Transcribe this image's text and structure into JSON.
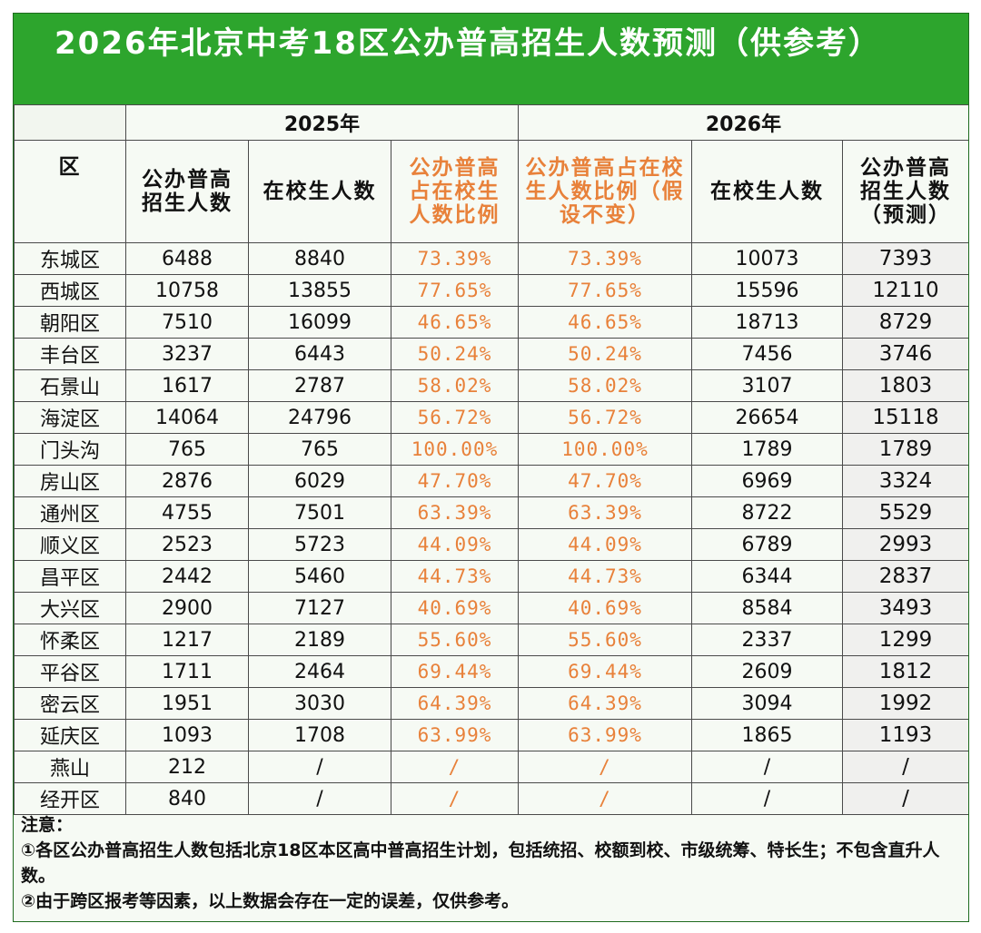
{
  "title": "2026年北京中考18区公办普高招生人数预测（供参考）",
  "header": {
    "district_col": "区",
    "group_2025": "2025年",
    "group_2026": "2026年",
    "col_enroll_2025": "公办普高招生人数",
    "col_students_2025": "在校生人数",
    "col_ratio_2025": "公办普高占在校生人数比例",
    "col_ratio_2026": "公办普高占在校生人数比例（假设不变）",
    "col_students_2026": "在校生人数",
    "col_pred_2026": "公办普高招生人数（预测）"
  },
  "rows": [
    {
      "district": "东城区",
      "enroll_2025": "6488",
      "students_2025": "8840",
      "ratio_2025": "73.39%",
      "ratio_2026": "73.39%",
      "students_2026": "10073",
      "pred_2026": "7393"
    },
    {
      "district": "西城区",
      "enroll_2025": "10758",
      "students_2025": "13855",
      "ratio_2025": "77.65%",
      "ratio_2026": "77.65%",
      "students_2026": "15596",
      "pred_2026": "12110"
    },
    {
      "district": "朝阳区",
      "enroll_2025": "7510",
      "students_2025": "16099",
      "ratio_2025": "46.65%",
      "ratio_2026": "46.65%",
      "students_2026": "18713",
      "pred_2026": "8729"
    },
    {
      "district": "丰台区",
      "enroll_2025": "3237",
      "students_2025": "6443",
      "ratio_2025": "50.24%",
      "ratio_2026": "50.24%",
      "students_2026": "7456",
      "pred_2026": "3746"
    },
    {
      "district": "石景山",
      "enroll_2025": "1617",
      "students_2025": "2787",
      "ratio_2025": "58.02%",
      "ratio_2026": "58.02%",
      "students_2026": "3107",
      "pred_2026": "1803"
    },
    {
      "district": "海淀区",
      "enroll_2025": "14064",
      "students_2025": "24796",
      "ratio_2025": "56.72%",
      "ratio_2026": "56.72%",
      "students_2026": "26654",
      "pred_2026": "15118"
    },
    {
      "district": "门头沟",
      "enroll_2025": "765",
      "students_2025": "765",
      "ratio_2025": "100.00%",
      "ratio_2026": "100.00%",
      "students_2026": "1789",
      "pred_2026": "1789"
    },
    {
      "district": "房山区",
      "enroll_2025": "2876",
      "students_2025": "6029",
      "ratio_2025": "47.70%",
      "ratio_2026": "47.70%",
      "students_2026": "6969",
      "pred_2026": "3324"
    },
    {
      "district": "通州区",
      "enroll_2025": "4755",
      "students_2025": "7501",
      "ratio_2025": "63.39%",
      "ratio_2026": "63.39%",
      "students_2026": "8722",
      "pred_2026": "5529"
    },
    {
      "district": "顺义区",
      "enroll_2025": "2523",
      "students_2025": "5723",
      "ratio_2025": "44.09%",
      "ratio_2026": "44.09%",
      "students_2026": "6789",
      "pred_2026": "2993"
    },
    {
      "district": "昌平区",
      "enroll_2025": "2442",
      "students_2025": "5460",
      "ratio_2025": "44.73%",
      "ratio_2026": "44.73%",
      "students_2026": "6344",
      "pred_2026": "2837"
    },
    {
      "district": "大兴区",
      "enroll_2025": "2900",
      "students_2025": "7127",
      "ratio_2025": "40.69%",
      "ratio_2026": "40.69%",
      "students_2026": "8584",
      "pred_2026": "3493"
    },
    {
      "district": "怀柔区",
      "enroll_2025": "1217",
      "students_2025": "2189",
      "ratio_2025": "55.60%",
      "ratio_2026": "55.60%",
      "students_2026": "2337",
      "pred_2026": "1299"
    },
    {
      "district": "平谷区",
      "enroll_2025": "1711",
      "students_2025": "2464",
      "ratio_2025": "69.44%",
      "ratio_2026": "69.44%",
      "students_2026": "2609",
      "pred_2026": "1812"
    },
    {
      "district": "密云区",
      "enroll_2025": "1951",
      "students_2025": "3030",
      "ratio_2025": "64.39%",
      "ratio_2026": "64.39%",
      "students_2026": "3094",
      "pred_2026": "1992"
    },
    {
      "district": "延庆区",
      "enroll_2025": "1093",
      "students_2025": "1708",
      "ratio_2025": "63.99%",
      "ratio_2026": "63.99%",
      "students_2026": "1865",
      "pred_2026": "1193"
    },
    {
      "district": "燕山",
      "enroll_2025": "212",
      "students_2025": "/",
      "ratio_2025": "/",
      "ratio_2026": "/",
      "students_2026": "/",
      "pred_2026": "/"
    },
    {
      "district": "经开区",
      "enroll_2025": "840",
      "students_2025": "/",
      "ratio_2025": "/",
      "ratio_2026": "/",
      "students_2026": "/",
      "pred_2026": "/"
    }
  ],
  "notes": {
    "heading": "注意：",
    "note1": "①各区公办普高招生人数包括北京18区本区高中普高招生计划，包括统招、校额到校、市级统筹、特长生；不包含直升人数。",
    "note2": "②由于跨区报考等因素，以上数据会存在一定的误差，仅供参考。"
  },
  "colors": {
    "title_bg": "#2da52d",
    "title_text": "#ffffff",
    "ratio_text": "#e8813a",
    "border": "#4a4a4a"
  }
}
